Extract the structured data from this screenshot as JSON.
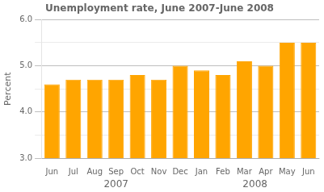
{
  "chart_data": {
    "type": "bar",
    "title": "Unemployment rate, June 2007-June 2008",
    "ylabel": "Percent",
    "categories": [
      "Jun",
      "Jul",
      "Aug",
      "Sep",
      "Oct",
      "Nov",
      "Dec",
      "Jan",
      "Feb",
      "Mar",
      "Apr",
      "May",
      "Jun"
    ],
    "values": [
      4.6,
      4.7,
      4.7,
      4.7,
      4.8,
      4.7,
      5.0,
      4.9,
      4.8,
      5.1,
      5.0,
      5.5,
      5.5
    ],
    "color": "#FFA500",
    "ylim": [
      3.0,
      6.0
    ],
    "yticks": [
      {
        "value": 3.0,
        "label": "3.0"
      },
      {
        "value": 3.5,
        "label": null
      },
      {
        "value": 4.0,
        "label": "4.0"
      },
      {
        "value": 4.5,
        "label": null
      },
      {
        "value": 5.0,
        "label": "5.0"
      },
      {
        "value": 5.5,
        "label": null
      },
      {
        "value": 6.0,
        "label": "6.0"
      }
    ],
    "grid": true,
    "annotations": [
      {
        "text": "2007",
        "x": 3.0
      },
      {
        "text": "2008",
        "x": 9.5
      }
    ]
  }
}
